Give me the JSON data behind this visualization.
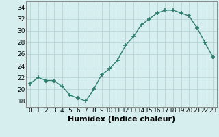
{
  "x": [
    0,
    1,
    2,
    3,
    4,
    5,
    6,
    7,
    8,
    9,
    10,
    11,
    12,
    13,
    14,
    15,
    16,
    17,
    18,
    19,
    20,
    21,
    22,
    23
  ],
  "y": [
    21,
    22,
    21.5,
    21.5,
    20.5,
    19,
    18.5,
    18,
    20,
    22.5,
    23.5,
    25,
    27.5,
    29,
    31,
    32,
    33,
    33.5,
    33.5,
    33,
    32.5,
    30.5,
    28,
    25.5
  ],
  "line_color": "#2e7d6e",
  "marker": "+",
  "marker_size": 4,
  "bg_color": "#d6eeee",
  "grid_color": "#b8d4d4",
  "xlabel": "Humidex (Indice chaleur)",
  "xlim": [
    -0.5,
    23.5
  ],
  "ylim": [
    17,
    35
  ],
  "yticks": [
    18,
    20,
    22,
    24,
    26,
    28,
    30,
    32,
    34
  ],
  "xticks": [
    0,
    1,
    2,
    3,
    4,
    5,
    6,
    7,
    8,
    9,
    10,
    11,
    12,
    13,
    14,
    15,
    16,
    17,
    18,
    19,
    20,
    21,
    22,
    23
  ],
  "tick_label_fontsize": 6.5,
  "xlabel_fontsize": 8,
  "line_width": 1.0
}
